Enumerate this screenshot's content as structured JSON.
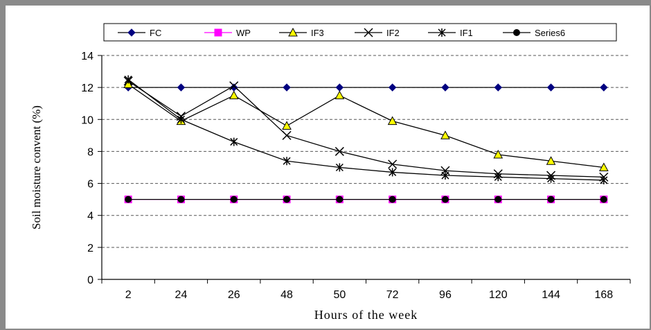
{
  "chart_data": {
    "type": "line",
    "title": "",
    "xlabel": "Hours of the week",
    "ylabel": "Soil moisture convent (%)",
    "categories": [
      "2",
      "24",
      "26",
      "48",
      "50",
      "72",
      "96",
      "120",
      "144",
      "168"
    ],
    "ylim": [
      0,
      14
    ],
    "yticks": [
      0,
      2,
      4,
      6,
      8,
      10,
      12,
      14
    ],
    "grid": "horizontal dashed",
    "legend_position": "top",
    "series": [
      {
        "name": "FC",
        "color": "#000080",
        "marker": "diamond",
        "values": [
          12,
          12,
          12,
          12,
          12,
          12,
          12,
          12,
          12,
          12
        ]
      },
      {
        "name": "WP",
        "color": "#ff00ff",
        "marker": "square",
        "values": [
          5,
          5,
          5,
          5,
          5,
          5,
          5,
          5,
          5,
          5
        ]
      },
      {
        "name": "IF3",
        "color": "#000000",
        "marker": "triangle",
        "values": [
          12.2,
          9.9,
          11.5,
          9.6,
          11.5,
          9.9,
          9.0,
          7.8,
          7.4,
          7.0
        ]
      },
      {
        "name": "IF2",
        "color": "#000000",
        "marker": "x",
        "values": [
          12.4,
          10.2,
          12.1,
          9.0,
          8.0,
          7.2,
          6.8,
          6.6,
          6.5,
          6.4
        ]
      },
      {
        "name": "IF1",
        "color": "#000000",
        "marker": "star",
        "values": [
          12.5,
          10.0,
          8.6,
          7.4,
          7.0,
          6.7,
          6.5,
          6.4,
          6.3,
          6.2
        ]
      },
      {
        "name": "Series6",
        "color": "#000000",
        "marker": "circle",
        "values": [
          5,
          5,
          5,
          5,
          5,
          5,
          5,
          5,
          5,
          5
        ]
      }
    ]
  }
}
